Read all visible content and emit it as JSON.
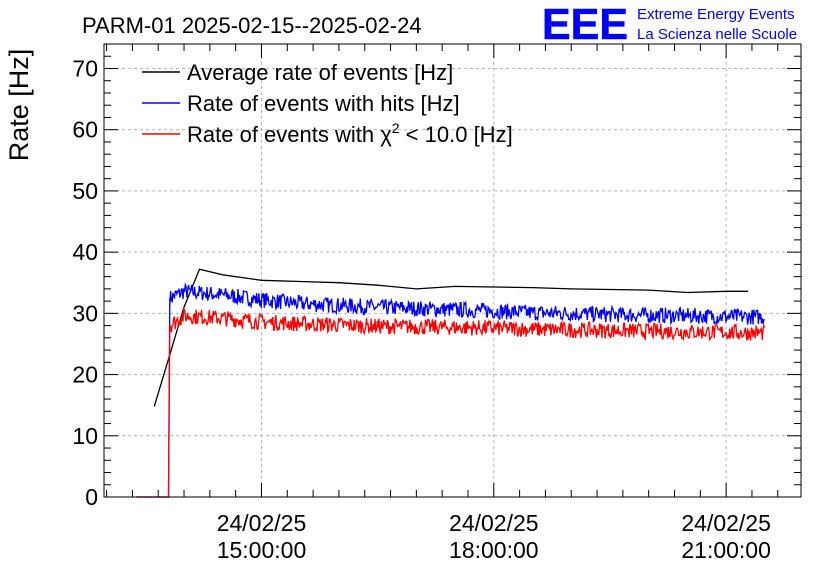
{
  "chart_data": {
    "type": "line",
    "title": "PARM-01 2025-02-15--2025-02-24",
    "ylabel": "Rate [Hz]",
    "xlabel": "",
    "ylim": [
      0,
      74
    ],
    "xlim": [
      "2025-02-24 12:58",
      "2025-02-24 21:58"
    ],
    "yticks": [
      0,
      10,
      20,
      30,
      40,
      50,
      60,
      70
    ],
    "xticks": [
      {
        "x": "2025-02-24 15:00",
        "date": "24/02/25",
        "time": "15:00:00"
      },
      {
        "x": "2025-02-24 18:00",
        "date": "24/02/25",
        "time": "18:00:00"
      },
      {
        "x": "2025-02-24 21:00",
        "date": "24/02/25",
        "time": "21:00:00"
      }
    ],
    "grid": true,
    "legend_position": "top-left",
    "series": [
      {
        "name": "Average rate of events [Hz]",
        "color": "#000000",
        "style": "line",
        "points": [
          [
            "2025-02-24 13:37",
            14.8
          ],
          [
            "2025-02-24 14:00",
            31.0
          ],
          [
            "2025-02-24 14:12",
            37.2
          ],
          [
            "2025-02-24 14:30",
            36.3
          ],
          [
            "2025-02-24 15:00",
            35.4
          ],
          [
            "2025-02-24 15:30",
            35.2
          ],
          [
            "2025-02-24 16:00",
            35.0
          ],
          [
            "2025-02-24 16:30",
            34.6
          ],
          [
            "2025-02-24 17:00",
            34.0
          ],
          [
            "2025-02-24 17:30",
            34.4
          ],
          [
            "2025-02-24 18:00",
            34.3
          ],
          [
            "2025-02-24 18:30",
            34.2
          ],
          [
            "2025-02-24 19:00",
            34.0
          ],
          [
            "2025-02-24 19:30",
            33.9
          ],
          [
            "2025-02-24 20:00",
            33.8
          ],
          [
            "2025-02-24 20:30",
            33.4
          ],
          [
            "2025-02-24 21:00",
            33.6
          ],
          [
            "2025-02-24 21:17",
            33.6
          ]
        ]
      },
      {
        "name": "Rate of events with hits [Hz]",
        "color": "#0000ff",
        "style": "noisy",
        "points": [
          [
            "2025-02-24 13:23",
            0
          ],
          [
            "2025-02-24 13:48",
            0
          ],
          [
            "2025-02-24 13:49",
            32.5
          ],
          [
            "2025-02-24 14:00",
            33.6
          ],
          [
            "2025-02-24 14:30",
            33.0
          ],
          [
            "2025-02-24 15:00",
            32.2
          ],
          [
            "2025-02-24 15:30",
            31.6
          ],
          [
            "2025-02-24 16:00",
            31.3
          ],
          [
            "2025-02-24 16:30",
            31.0
          ],
          [
            "2025-02-24 17:00",
            30.8
          ],
          [
            "2025-02-24 17:30",
            30.6
          ],
          [
            "2025-02-24 18:00",
            30.4
          ],
          [
            "2025-02-24 18:30",
            30.1
          ],
          [
            "2025-02-24 19:00",
            30.0
          ],
          [
            "2025-02-24 19:30",
            29.8
          ],
          [
            "2025-02-24 20:00",
            29.7
          ],
          [
            "2025-02-24 20:30",
            29.6
          ],
          [
            "2025-02-24 21:00",
            29.5
          ],
          [
            "2025-02-24 21:30",
            29.4
          ]
        ]
      },
      {
        "name": "Rate of events with χ2 < 10.0 [Hz]",
        "color": "#ff0000",
        "style": "noisy",
        "points": [
          [
            "2025-02-24 13:23",
            0
          ],
          [
            "2025-02-24 13:48",
            0
          ],
          [
            "2025-02-24 13:49",
            28.0
          ],
          [
            "2025-02-24 14:00",
            29.6
          ],
          [
            "2025-02-24 14:30",
            29.2
          ],
          [
            "2025-02-24 15:00",
            28.6
          ],
          [
            "2025-02-24 15:30",
            28.3
          ],
          [
            "2025-02-24 16:00",
            28.1
          ],
          [
            "2025-02-24 16:30",
            27.9
          ],
          [
            "2025-02-24 17:00",
            27.8
          ],
          [
            "2025-02-24 17:30",
            27.7
          ],
          [
            "2025-02-24 18:00",
            27.6
          ],
          [
            "2025-02-24 18:30",
            27.4
          ],
          [
            "2025-02-24 19:00",
            27.3
          ],
          [
            "2025-02-24 19:30",
            27.2
          ],
          [
            "2025-02-24 20:00",
            27.1
          ],
          [
            "2025-02-24 20:30",
            27.0
          ],
          [
            "2025-02-24 21:00",
            26.9
          ],
          [
            "2025-02-24 21:30",
            26.8
          ]
        ]
      }
    ]
  },
  "legend": {
    "average": "Average rate of events [Hz]",
    "hits": "Rate of events with hits [Hz]",
    "chi2_prefix": "Rate of events with χ",
    "chi2_sup": "2",
    "chi2_suffix": " < 10.0 [Hz]"
  },
  "logo": {
    "mark": "EEE",
    "line1": "Extreme Energy Events",
    "line2": "La Scienza nelle Scuole",
    "color": "#0000ff"
  }
}
